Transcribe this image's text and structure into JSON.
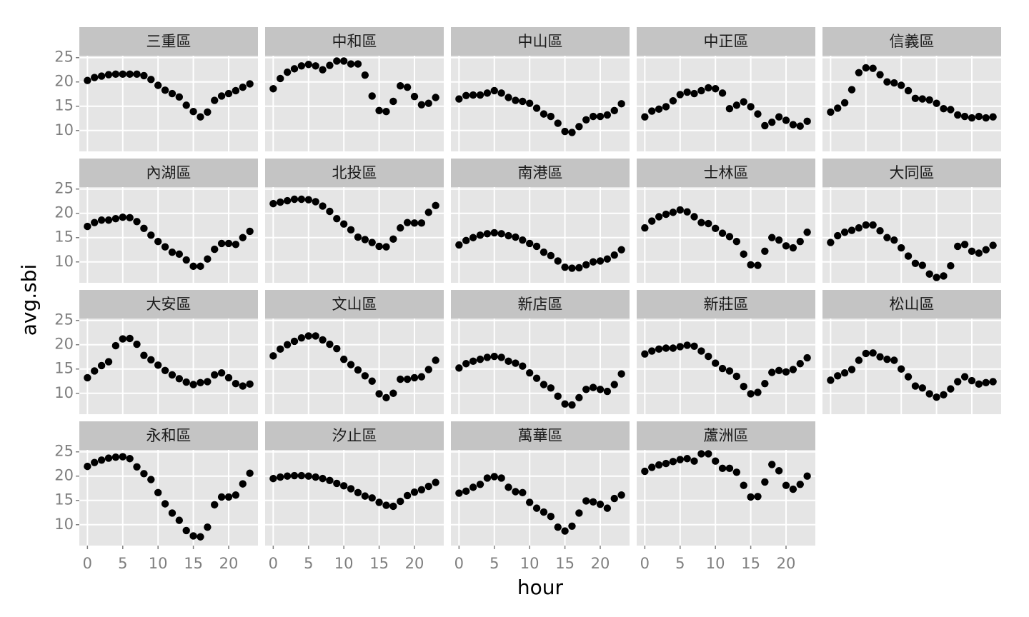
{
  "chart_data": {
    "type": "scatter",
    "x_label": "hour",
    "y_label": "avg.sbi",
    "grid": true,
    "color": "#000000",
    "x": [
      0,
      1,
      2,
      3,
      4,
      5,
      6,
      7,
      8,
      9,
      10,
      11,
      12,
      13,
      14,
      15,
      16,
      17,
      18,
      19,
      20,
      21,
      22,
      23
    ],
    "xlim": [
      -1.15,
      24.15
    ],
    "xticks": [
      0,
      5,
      10,
      15,
      20
    ],
    "ylim": [
      5.7,
      25.4
    ],
    "yticks": [
      10,
      15,
      20,
      25
    ],
    "facets": [
      {
        "title": "三重區",
        "values": [
          20.3,
          20.9,
          21.2,
          21.5,
          21.6,
          21.6,
          21.6,
          21.6,
          21.3,
          20.5,
          19.3,
          18.3,
          17.6,
          16.9,
          15.2,
          13.9,
          12.8,
          13.8,
          16.2,
          17.1,
          17.6,
          18.2,
          18.9,
          19.6
        ]
      },
      {
        "title": "中和區",
        "values": [
          18.6,
          20.7,
          22.0,
          22.7,
          23.3,
          23.6,
          23.3,
          22.5,
          23.4,
          24.3,
          24.3,
          23.7,
          23.7,
          21.4,
          17.1,
          14.1,
          13.9,
          16.0,
          19.2,
          18.9,
          17.0,
          15.3,
          15.6,
          16.8
        ]
      },
      {
        "title": "中山區",
        "values": [
          16.5,
          17.2,
          17.3,
          17.3,
          17.7,
          18.2,
          17.7,
          16.8,
          16.2,
          16.0,
          15.6,
          14.6,
          13.4,
          12.9,
          11.5,
          9.8,
          9.6,
          10.8,
          12.2,
          12.9,
          12.9,
          13.2,
          14.1,
          15.5
        ]
      },
      {
        "title": "中正區",
        "values": [
          12.8,
          14.0,
          14.4,
          14.9,
          16.1,
          17.4,
          17.9,
          17.6,
          18.2,
          18.8,
          18.6,
          17.7,
          14.5,
          15.2,
          15.9,
          14.9,
          13.4,
          11.0,
          11.7,
          12.8,
          12.1,
          11.2,
          10.9,
          11.9
        ]
      },
      {
        "title": "信義區",
        "values": [
          13.8,
          14.6,
          15.7,
          18.4,
          21.9,
          22.9,
          22.8,
          21.5,
          20.0,
          19.8,
          19.3,
          18.2,
          16.6,
          16.5,
          16.3,
          15.6,
          14.5,
          14.3,
          13.2,
          12.9,
          12.6,
          12.9,
          12.6,
          12.8
        ]
      },
      {
        "title": "內湖區",
        "values": [
          17.3,
          18.1,
          18.6,
          18.6,
          18.9,
          19.2,
          19.1,
          18.3,
          16.9,
          15.5,
          14.2,
          13.1,
          12.0,
          11.6,
          10.4,
          9.1,
          9.1,
          10.6,
          12.6,
          13.8,
          13.8,
          13.6,
          15.0,
          16.3
        ]
      },
      {
        "title": "北投區",
        "values": [
          22.0,
          22.3,
          22.6,
          22.9,
          22.9,
          22.8,
          22.4,
          21.5,
          20.4,
          18.9,
          17.8,
          16.6,
          15.1,
          14.6,
          14.0,
          13.2,
          13.1,
          14.7,
          17.0,
          18.1,
          18.0,
          18.0,
          20.2,
          21.6
        ]
      },
      {
        "title": "南港區",
        "values": [
          13.5,
          14.4,
          15.0,
          15.5,
          15.8,
          16.0,
          15.8,
          15.4,
          15.1,
          14.5,
          13.8,
          13.2,
          12.0,
          11.3,
          10.2,
          8.9,
          8.7,
          8.8,
          9.4,
          10.0,
          10.2,
          10.6,
          11.4,
          12.5
        ]
      },
      {
        "title": "士林區",
        "values": [
          17.0,
          18.4,
          19.3,
          19.8,
          20.2,
          20.7,
          20.3,
          19.3,
          18.1,
          17.9,
          16.9,
          15.9,
          15.2,
          14.2,
          11.6,
          9.4,
          9.3,
          12.2,
          15.0,
          14.5,
          13.3,
          12.9,
          14.2,
          16.1
        ]
      },
      {
        "title": "大同區",
        "values": [
          14.0,
          15.4,
          16.1,
          16.5,
          17.0,
          17.6,
          17.6,
          16.4,
          15.0,
          14.5,
          12.9,
          11.2,
          9.7,
          9.3,
          7.5,
          6.8,
          7.1,
          9.2,
          13.2,
          13.6,
          12.2,
          11.8,
          12.5,
          13.4
        ]
      },
      {
        "title": "大安區",
        "values": [
          13.2,
          14.6,
          15.7,
          16.5,
          19.8,
          21.2,
          21.3,
          20.1,
          17.8,
          16.9,
          15.8,
          14.7,
          13.8,
          13.0,
          12.3,
          11.8,
          12.2,
          12.4,
          13.8,
          14.2,
          13.2,
          12.0,
          11.5,
          11.9
        ]
      },
      {
        "title": "文山區",
        "values": [
          17.7,
          19.1,
          20.0,
          20.7,
          21.4,
          21.8,
          21.8,
          21.0,
          20.1,
          19.2,
          17.0,
          15.9,
          14.8,
          13.6,
          12.5,
          9.9,
          9.1,
          10.0,
          12.9,
          12.9,
          13.2,
          13.4,
          14.9,
          16.8
        ]
      },
      {
        "title": "新店區",
        "values": [
          15.2,
          16.1,
          16.6,
          17.0,
          17.4,
          17.6,
          17.4,
          16.6,
          16.2,
          15.6,
          14.2,
          13.1,
          11.8,
          11.1,
          9.4,
          7.8,
          7.6,
          9.1,
          10.8,
          11.2,
          10.8,
          10.4,
          11.8,
          14.0
        ]
      },
      {
        "title": "新莊區",
        "values": [
          18.1,
          18.7,
          19.1,
          19.3,
          19.3,
          19.6,
          19.9,
          19.7,
          18.7,
          17.6,
          16.2,
          15.1,
          14.6,
          13.5,
          11.4,
          9.9,
          10.2,
          12.0,
          14.3,
          14.7,
          14.4,
          14.9,
          16.1,
          17.3
        ]
      },
      {
        "title": "松山區",
        "values": [
          12.7,
          13.6,
          14.2,
          14.9,
          16.8,
          18.2,
          18.3,
          17.5,
          17.0,
          16.8,
          15.0,
          13.4,
          11.5,
          11.1,
          9.9,
          9.2,
          9.7,
          10.9,
          12.4,
          13.4,
          12.6,
          11.9,
          12.2,
          12.4
        ]
      },
      {
        "title": "永和區",
        "values": [
          22.0,
          22.8,
          23.3,
          23.7,
          23.9,
          24.0,
          23.6,
          21.9,
          20.5,
          19.3,
          16.6,
          14.3,
          12.4,
          10.9,
          8.8,
          7.7,
          7.5,
          9.5,
          14.1,
          15.7,
          15.7,
          16.1,
          18.4,
          20.6
        ]
      },
      {
        "title": "汐止區",
        "values": [
          19.5,
          19.8,
          20.0,
          20.1,
          20.1,
          20.0,
          19.8,
          19.5,
          19.1,
          18.5,
          18.0,
          17.4,
          16.6,
          15.9,
          15.5,
          14.6,
          14.0,
          13.8,
          14.8,
          16.0,
          16.7,
          17.2,
          17.9,
          18.7
        ]
      },
      {
        "title": "萬華區",
        "values": [
          16.5,
          16.9,
          17.7,
          18.3,
          19.6,
          19.9,
          19.6,
          17.7,
          16.8,
          16.6,
          14.6,
          13.4,
          12.6,
          11.7,
          9.5,
          8.7,
          9.7,
          12.4,
          14.9,
          14.7,
          14.2,
          13.4,
          15.4,
          16.1
        ]
      },
      {
        "title": "蘆洲區",
        "values": [
          21.0,
          21.8,
          22.3,
          22.6,
          23.0,
          23.4,
          23.6,
          23.1,
          24.6,
          24.6,
          23.1,
          21.6,
          21.6,
          20.8,
          18.1,
          15.7,
          15.8,
          18.8,
          22.4,
          21.1,
          18.1,
          17.3,
          18.3,
          20.0
        ]
      }
    ]
  }
}
